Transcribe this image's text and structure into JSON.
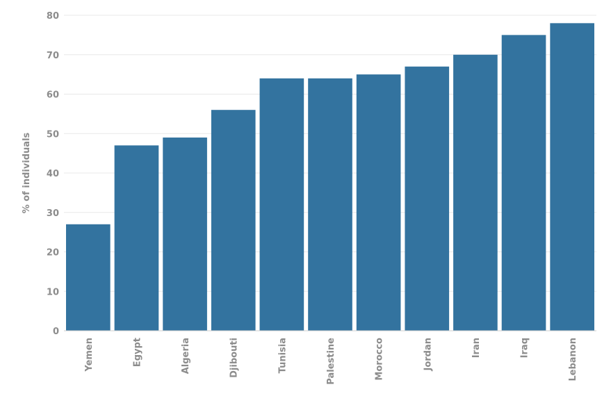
{
  "chart_data": {
    "type": "bar",
    "categories": [
      "Yemen",
      "Egypt",
      "Algeria",
      "Djibouti",
      "Tunisia",
      "Palestine",
      "Morocco",
      "Jordan",
      "Iran",
      "Iraq",
      "Lebanon"
    ],
    "values": [
      27,
      47,
      49,
      56,
      64,
      64,
      65,
      67,
      70,
      75,
      78
    ],
    "ylabel": "% of individuals",
    "xlabel": "",
    "ylim": [
      0,
      80
    ],
    "yticks": [
      0,
      10,
      20,
      30,
      40,
      50,
      60,
      70,
      80
    ],
    "grid": true,
    "bar_color": "#33739f"
  }
}
